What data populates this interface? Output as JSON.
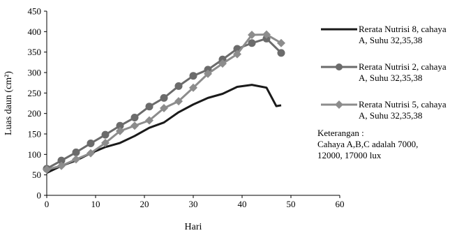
{
  "chart_data": {
    "type": "line",
    "xlabel": "Hari",
    "ylabel": "Luas daun (cm²)",
    "xlim": [
      0,
      60
    ],
    "ylim": [
      0,
      450
    ],
    "xticks": [
      0,
      10,
      20,
      30,
      40,
      50,
      60
    ],
    "yticks": [
      0,
      50,
      100,
      150,
      200,
      250,
      300,
      350,
      400,
      450
    ],
    "grid": false,
    "legend_position": "right",
    "series": [
      {
        "name": "Rerata Nutrisi 8, cahaya A, Suhu 32,35,38",
        "color": "#1a1a1a",
        "marker": "none",
        "points": [
          [
            0,
            55
          ],
          [
            3,
            72
          ],
          [
            6,
            85
          ],
          [
            9,
            103
          ],
          [
            12,
            118
          ],
          [
            15,
            128
          ],
          [
            18,
            145
          ],
          [
            21,
            165
          ],
          [
            24,
            178
          ],
          [
            27,
            203
          ],
          [
            30,
            222
          ],
          [
            33,
            238
          ],
          [
            36,
            248
          ],
          [
            39,
            265
          ],
          [
            42,
            270
          ],
          [
            45,
            263
          ],
          [
            47,
            218
          ],
          [
            48,
            220
          ]
        ]
      },
      {
        "name": "Rerata Nutrisi 2, cahaya A, Suhu 32,35,38",
        "color": "#6b6b6b",
        "marker": "circle",
        "points": [
          [
            0,
            65
          ],
          [
            3,
            85
          ],
          [
            6,
            105
          ],
          [
            9,
            127
          ],
          [
            12,
            148
          ],
          [
            15,
            170
          ],
          [
            18,
            190
          ],
          [
            21,
            217
          ],
          [
            24,
            238
          ],
          [
            27,
            267
          ],
          [
            30,
            292
          ],
          [
            33,
            307
          ],
          [
            36,
            332
          ],
          [
            39,
            358
          ],
          [
            42,
            372
          ],
          [
            45,
            383
          ],
          [
            48,
            348
          ]
        ]
      },
      {
        "name": "Rerata Nutrisi 5, cahaya A, Suhu 32,35,38",
        "color": "#8c8c8c",
        "marker": "diamond",
        "points": [
          [
            0,
            63
          ],
          [
            3,
            72
          ],
          [
            6,
            88
          ],
          [
            9,
            103
          ],
          [
            12,
            128
          ],
          [
            15,
            157
          ],
          [
            18,
            170
          ],
          [
            21,
            183
          ],
          [
            24,
            213
          ],
          [
            27,
            230
          ],
          [
            30,
            263
          ],
          [
            33,
            297
          ],
          [
            36,
            322
          ],
          [
            39,
            345
          ],
          [
            42,
            392
          ],
          [
            45,
            393
          ],
          [
            48,
            372
          ]
        ]
      }
    ]
  },
  "legend": {
    "items": [
      {
        "label": "Rerata Nutrisi 8, cahaya A, Suhu 32,35,38"
      },
      {
        "label": "Rerata Nutrisi 2, cahaya A, Suhu 32,35,38"
      },
      {
        "label": "Rerata Nutrisi 5, cahaya A, Suhu 32,35,38"
      }
    ]
  },
  "note": {
    "line1": "Keterangan :",
    "line2": "Cahaya A,B,C adalah 7000,",
    "line3": "12000, 17000 lux"
  }
}
